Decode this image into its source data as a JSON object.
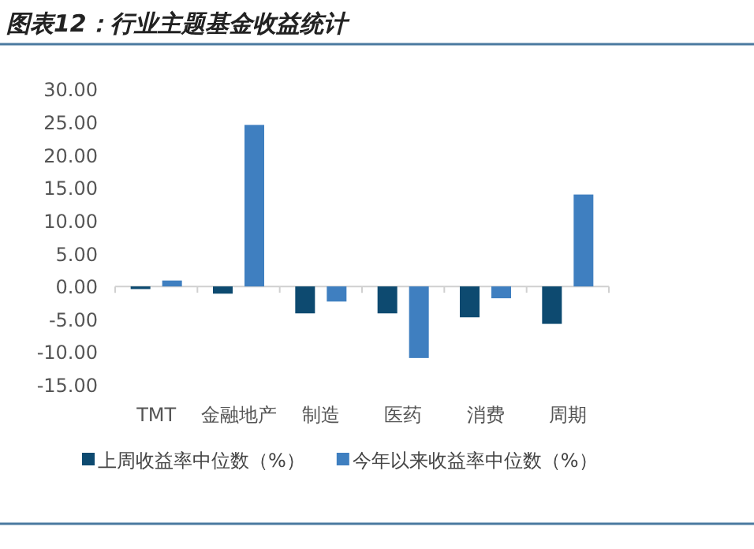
{
  "chart_data": {
    "type": "bar",
    "title": "图表12：行业主题基金收益统计",
    "categories": [
      "TMT",
      "金融地产",
      "制造",
      "医药",
      "消费",
      "周期"
    ],
    "series": [
      {
        "name": "上周收益率中位数（%）",
        "color": "#0d4a70",
        "values": [
          -0.4,
          -1.1,
          -4.1,
          -4.1,
          -4.7,
          -5.7
        ]
      },
      {
        "name": "今年以来收益率中位数（%）",
        "color": "#3f7fc0",
        "values": [
          0.9,
          24.6,
          -2.3,
          -10.9,
          -1.8,
          14.0
        ]
      }
    ],
    "ylim": [
      -15,
      30
    ],
    "yticks": [
      {
        "value": -15,
        "label": "-15.00"
      },
      {
        "value": -10,
        "label": "-10.00"
      },
      {
        "value": -5,
        "label": "-5.00"
      },
      {
        "value": 0,
        "label": "0.00"
      },
      {
        "value": 5,
        "label": "5.00"
      },
      {
        "value": 10,
        "label": "10.00"
      },
      {
        "value": 15,
        "label": "15.00"
      },
      {
        "value": 20,
        "label": "20.00"
      },
      {
        "value": 25,
        "label": "25.00"
      },
      {
        "value": 30,
        "label": "30.00"
      }
    ],
    "legend": "bottom"
  }
}
